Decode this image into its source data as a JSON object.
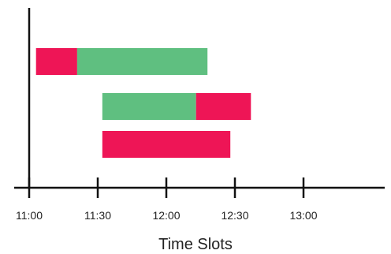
{
  "chart_data": {
    "type": "bar",
    "orientation": "horizontal",
    "stacked": true,
    "title": "",
    "xlabel": "Time Slots",
    "ylabel": "",
    "xlim": [
      "11:00",
      "13:48"
    ],
    "x_ticks": [
      "11:00",
      "11:30",
      "12:00",
      "12:30",
      "13:00"
    ],
    "grid": false,
    "legend": "none",
    "colors": {
      "red": "#EE1556",
      "green": "#5FBF80",
      "axis": "#111111"
    },
    "rows": [
      {
        "segments": [
          {
            "start": "11:03",
            "end": "11:21",
            "color": "red"
          },
          {
            "start": "11:21",
            "end": "12:18",
            "color": "green"
          }
        ]
      },
      {
        "segments": [
          {
            "start": "11:32",
            "end": "12:13",
            "color": "green"
          },
          {
            "start": "12:13",
            "end": "12:37",
            "color": "red"
          }
        ]
      },
      {
        "segments": [
          {
            "start": "11:32",
            "end": "12:28",
            "color": "red"
          }
        ]
      }
    ]
  }
}
